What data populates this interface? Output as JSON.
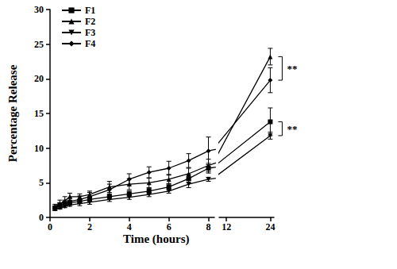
{
  "chart_data": {
    "type": "line",
    "x_label": "Time (hours)",
    "y_label": "Percentage Release",
    "x": [
      0.25,
      0.5,
      0.75,
      1,
      1.5,
      2,
      3,
      4,
      5,
      6,
      7,
      8,
      24
    ],
    "x_segments": [
      {
        "xlim": [
          0,
          8.3
        ],
        "xticks": [
          0,
          2,
          4,
          6,
          8
        ]
      },
      {
        "xlim": [
          10,
          25
        ],
        "xticks": [
          12,
          24
        ]
      }
    ],
    "ylim": [
      0,
      30
    ],
    "yticks": [
      0,
      5,
      10,
      15,
      20,
      25,
      30
    ],
    "grid": false,
    "legend": "upper left",
    "series": [
      {
        "name": "F1",
        "color": "#000000",
        "marker": "square",
        "values": [
          1.4,
          1.8,
          2.0,
          2.1,
          2.3,
          2.6,
          3.0,
          3.4,
          3.8,
          4.4,
          5.6,
          7.1,
          13.8
        ],
        "errors": [
          0.2,
          0.3,
          0.3,
          0.3,
          0.3,
          0.3,
          0.4,
          0.4,
          0.4,
          0.5,
          0.6,
          0.7,
          2.0
        ]
      },
      {
        "name": "F2",
        "color": "#000000",
        "marker": "triangle",
        "values": [
          1.6,
          2.0,
          2.4,
          3.0,
          3.0,
          3.3,
          4.4,
          4.8,
          5.0,
          5.5,
          6.3,
          7.5,
          23.2
        ],
        "errors": [
          0.3,
          0.5,
          0.6,
          0.5,
          0.4,
          0.5,
          0.8,
          0.8,
          0.7,
          0.7,
          0.8,
          0.9,
          1.2
        ]
      },
      {
        "name": "F3",
        "color": "#000000",
        "marker": "triangle-down",
        "values": [
          1.2,
          1.4,
          1.6,
          1.8,
          2.0,
          2.2,
          2.6,
          2.9,
          3.3,
          3.8,
          4.8,
          5.5,
          11.8
        ],
        "errors": [
          0.2,
          0.2,
          0.2,
          0.2,
          0.3,
          0.3,
          0.3,
          0.3,
          0.3,
          0.3,
          0.5,
          0.3,
          0.5
        ]
      },
      {
        "name": "F4",
        "color": "#000000",
        "marker": "diamond",
        "values": [
          1.3,
          1.7,
          2.0,
          2.3,
          2.6,
          3.0,
          4.0,
          5.5,
          6.5,
          7.1,
          8.2,
          9.6,
          19.8
        ],
        "errors": [
          0.3,
          0.4,
          0.5,
          0.5,
          0.5,
          0.6,
          0.8,
          0.8,
          0.8,
          1.0,
          1.0,
          2.0,
          1.8
        ]
      }
    ],
    "annotations": [
      {
        "text": "**",
        "x": 24,
        "between": [
          "F2",
          "F4"
        ]
      },
      {
        "text": "**",
        "x": 24,
        "between": [
          "F1",
          "F3"
        ]
      }
    ]
  }
}
